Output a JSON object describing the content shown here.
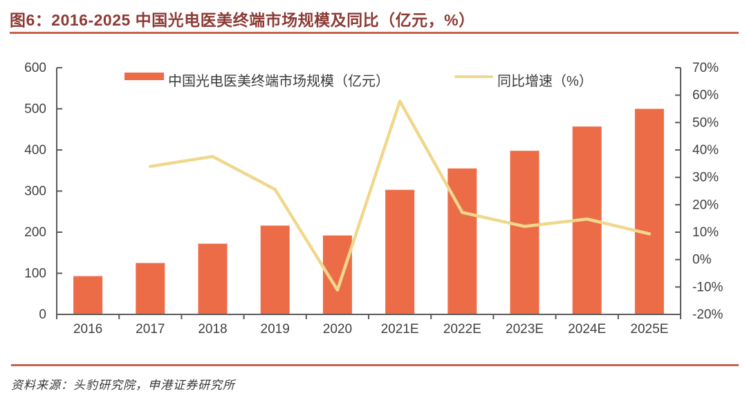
{
  "header": {
    "title": "图6：2016-2025 中国光电医美终端市场规模及同比（亿元，%）"
  },
  "footer": {
    "source": "资料来源：头豹研究院，申港证券研究所"
  },
  "colors": {
    "bar": "#ED6C48",
    "line": "#EFD88C",
    "title": "#8C3A34",
    "rule": "#C8614D",
    "axis_line": "#595959",
    "axis_text": "#3F3F3F"
  },
  "chart_data": {
    "type": "bar",
    "subtype": "bar+line combo",
    "title": "2016-2025 中国光电医美终端市场规模及同比（亿元，%）",
    "categories": [
      "2016",
      "2017",
      "2018",
      "2019",
      "2020",
      "2021E",
      "2022E",
      "2023E",
      "2024E",
      "2025E"
    ],
    "series": [
      {
        "name": "中国光电医美终端市场规模（亿元）",
        "type": "bar",
        "axis": "left",
        "values": [
          93,
          125,
          172,
          216,
          192,
          303,
          355,
          398,
          457,
          500
        ]
      },
      {
        "name": "同比增速（%）",
        "type": "line",
        "axis": "right",
        "values": [
          null,
          34,
          37.6,
          25.6,
          -11.1,
          57.8,
          17.2,
          12.1,
          14.8,
          9.4
        ]
      }
    ],
    "left_axis": {
      "min": 0,
      "max": 600,
      "step": 100,
      "labels": [
        "0",
        "100",
        "200",
        "300",
        "400",
        "500",
        "600"
      ]
    },
    "right_axis": {
      "min": -20,
      "max": 70,
      "step": 10,
      "suffix": "%",
      "labels": [
        "-20%",
        "-10%",
        "0%",
        "10%",
        "20%",
        "30%",
        "40%",
        "50%",
        "60%",
        "70%"
      ]
    },
    "grid": false,
    "legend_position": "top"
  }
}
